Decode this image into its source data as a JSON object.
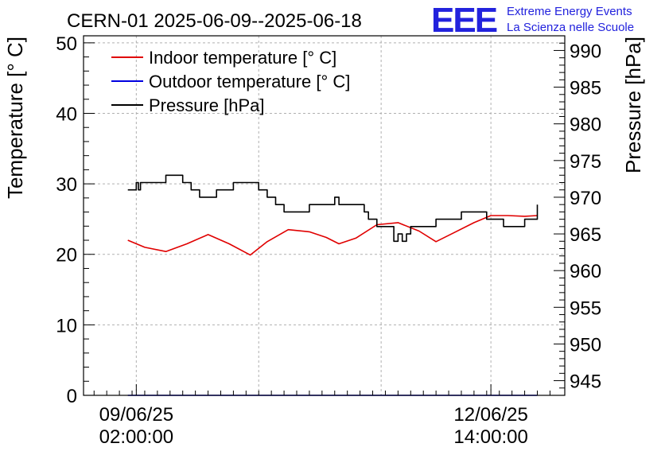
{
  "header": {
    "logo_text": "EEE",
    "brand_line1": "Extreme Energy Events",
    "brand_line2": "La Scienza nelle Scuole"
  },
  "chart_data": {
    "type": "line",
    "title": "CERN-01 2025-06-09--2025-06-18",
    "ylabel": "Temperature [° C]",
    "y2label": "Pressure [hPa]",
    "xlabel": "",
    "ylim": [
      0,
      51
    ],
    "y2lim": [
      943,
      992
    ],
    "yticks": [
      0,
      10,
      20,
      30,
      40,
      50
    ],
    "y2ticks": [
      945,
      950,
      955,
      960,
      965,
      970,
      975,
      980,
      985,
      990
    ],
    "x_tick_labels": [
      {
        "date": "09/06/25",
        "time": "02:00:00",
        "hours": 2
      },
      {
        "date": "12/06/25",
        "time": "14:00:00",
        "hours": 86
      }
    ],
    "xlim_hours": [
      -10.5,
      103.5
    ],
    "grid": true,
    "legend_position": "top-left",
    "colors": {
      "indoor": "#e00000",
      "outdoor": "#0000e0",
      "pressure": "#000000",
      "grid": "#b0b0b0",
      "brand": "#2222dd"
    },
    "series": [
      {
        "name": "Indoor temperature [° C]",
        "axis": "left",
        "color": "#e00000",
        "x_hours": [
          0,
          4,
          9,
          14,
          19,
          24,
          29,
          33,
          38,
          43,
          47,
          50,
          54,
          59,
          64,
          69,
          73,
          77,
          82,
          86,
          90,
          94,
          97
        ],
        "values": [
          22.0,
          21.0,
          20.4,
          21.5,
          22.8,
          21.5,
          19.9,
          21.8,
          23.5,
          23.2,
          22.4,
          21.5,
          22.3,
          24.2,
          24.5,
          23.3,
          21.8,
          23.0,
          24.5,
          25.5,
          25.5,
          25.4,
          25.5
        ]
      },
      {
        "name": "Outdoor temperature [° C]",
        "axis": "left",
        "color": "#0000e0",
        "x_hours": [
          0,
          97
        ],
        "values": [
          0,
          0
        ]
      },
      {
        "name": "Pressure [hPa]",
        "axis": "right",
        "color": "#000000",
        "x_hours": [
          0,
          1,
          2,
          2.5,
          3,
          4,
          6,
          9,
          12,
          13,
          15,
          17,
          19,
          21,
          25,
          29,
          31,
          33,
          35,
          37,
          38,
          43,
          47,
          49,
          50,
          51,
          56,
          57,
          59,
          63,
          64,
          65,
          66,
          67,
          68,
          70,
          72,
          73,
          75,
          79,
          81,
          85,
          89,
          92,
          94,
          97
        ],
        "values": [
          971,
          971,
          972,
          971,
          972,
          972,
          972,
          973,
          973,
          972,
          971,
          970,
          970,
          971,
          972,
          972,
          971,
          970,
          969,
          968,
          968,
          969,
          969,
          970,
          969,
          969,
          968,
          967,
          966,
          964,
          965,
          964,
          965,
          966,
          966,
          966,
          966,
          967,
          967,
          968,
          968,
          967,
          966,
          966,
          967,
          969
        ]
      }
    ]
  }
}
